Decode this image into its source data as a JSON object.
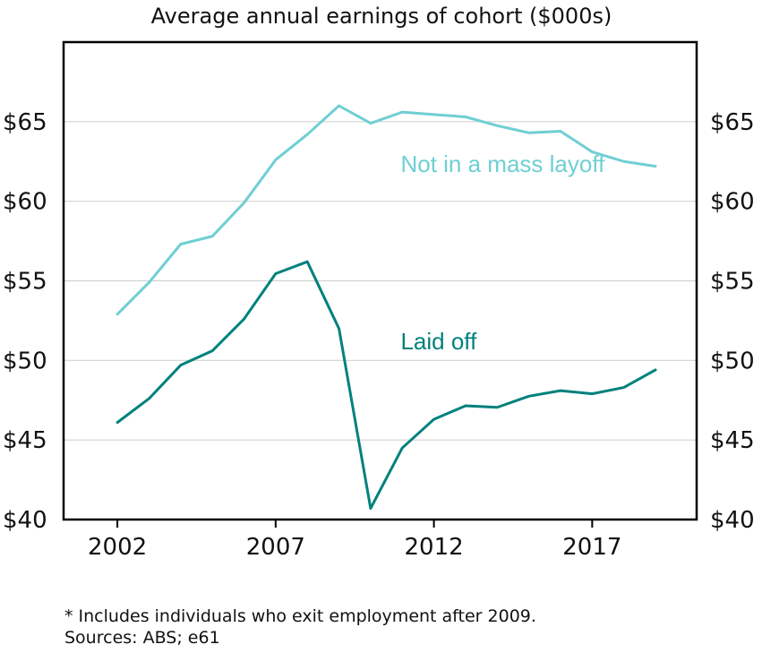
{
  "chart_data": {
    "type": "line",
    "title": "Average annual earnings of cohort ($000s)",
    "xlabel": "",
    "ylabel": "",
    "x": [
      2002,
      2003,
      2004,
      2005,
      2006,
      2007,
      2008,
      2009,
      2010,
      2011,
      2012,
      2013,
      2014,
      2015,
      2016,
      2017,
      2018,
      2019
    ],
    "xlim": [
      2000.3,
      2020.3
    ],
    "ylim": [
      40,
      70
    ],
    "x_ticks": [
      2002,
      2007,
      2012,
      2017
    ],
    "x_tick_labels": [
      "2002",
      "2007",
      "2012",
      "2017"
    ],
    "y_ticks": [
      40,
      45,
      50,
      55,
      60,
      65
    ],
    "y_tick_labels": [
      "$40",
      "$45",
      "$50",
      "$55",
      "$60",
      "$65"
    ],
    "grid": true,
    "series": [
      {
        "name": "Not in a mass layoff",
        "color": "#6fcfd4",
        "values": [
          52.9,
          54.9,
          57.3,
          57.8,
          59.9,
          62.6,
          64.2,
          66.0,
          64.9,
          65.6,
          65.45,
          65.3,
          64.75,
          64.3,
          64.4,
          63.1,
          62.5,
          62.2
        ]
      },
      {
        "name": "Laid off",
        "color": "#00817d",
        "values": [
          46.1,
          47.6,
          49.7,
          50.6,
          52.6,
          55.45,
          56.2,
          52.0,
          40.7,
          44.5,
          46.3,
          47.15,
          47.05,
          47.75,
          48.1,
          47.9,
          48.3,
          49.4
        ]
      }
    ],
    "annotations": [
      {
        "text": "Not in a mass layoff",
        "series": 0,
        "x": 2010.95,
        "y": 61.85
      },
      {
        "text": "Laid off",
        "series": 1,
        "x": 2010.95,
        "y": 50.7
      }
    ]
  },
  "footnotes": {
    "line1": "* Includes individuals who exit employment after 2009.",
    "line2": "Sources: ABS; e61"
  }
}
